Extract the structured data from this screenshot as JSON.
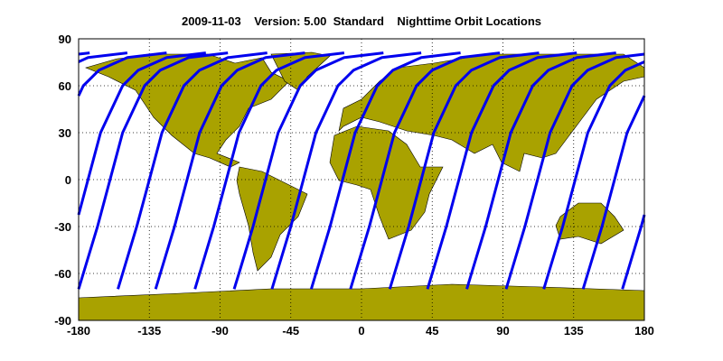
{
  "chart_data": {
    "type": "line",
    "title": "2009-11-03    Version: 5.00  Standard    Nighttime Orbit Locations",
    "xlim": [
      -180,
      180
    ],
    "ylim": [
      -90,
      90
    ],
    "xticks": [
      -180,
      -135,
      -90,
      -45,
      0,
      45,
      90,
      135,
      180
    ],
    "yticks": [
      -90,
      -60,
      -30,
      0,
      30,
      60,
      90
    ],
    "grid": true,
    "color": "#0000ee",
    "series": [
      {
        "x": [
          -180,
          -177,
          -168,
          -160,
          -152,
          -138,
          -128,
          -110,
          -85
        ],
        "y": [
          -70,
          -60,
          -30,
          0,
          30,
          60,
          70,
          78,
          81
        ]
      },
      {
        "x": [
          -155,
          -152,
          -143,
          -135,
          -127,
          -113,
          -103,
          -85,
          -60
        ],
        "y": [
          -70,
          -60,
          -30,
          0,
          30,
          60,
          70,
          78,
          81
        ]
      },
      {
        "x": [
          -131,
          -128,
          -119,
          -111,
          -103,
          -89,
          -79,
          -61,
          -36
        ],
        "y": [
          -70,
          -60,
          -30,
          0,
          30,
          60,
          70,
          78,
          81
        ]
      },
      {
        "x": [
          -106,
          -103,
          -94,
          -86,
          -78,
          -64,
          -54,
          -36,
          -11
        ],
        "y": [
          -70,
          -60,
          -30,
          0,
          30,
          60,
          70,
          78,
          81
        ]
      },
      {
        "x": [
          -81,
          -78,
          -69,
          -61,
          -53,
          -39,
          -29,
          -11,
          14
        ],
        "y": [
          -70,
          -60,
          -30,
          0,
          30,
          60,
          70,
          78,
          81
        ]
      },
      {
        "x": [
          -57,
          -54,
          -45,
          -37,
          -29,
          -15,
          -5,
          13,
          38
        ],
        "y": [
          -70,
          -60,
          -30,
          0,
          30,
          60,
          70,
          78,
          81
        ]
      },
      {
        "x": [
          -32,
          -29,
          -20,
          -12,
          -4,
          10,
          20,
          38,
          63
        ],
        "y": [
          -70,
          -60,
          -30,
          0,
          30,
          60,
          70,
          78,
          81
        ]
      },
      {
        "x": [
          -7,
          -4,
          5,
          13,
          21,
          35,
          45,
          63,
          88
        ],
        "y": [
          -70,
          -60,
          -30,
          0,
          30,
          60,
          70,
          78,
          81
        ]
      },
      {
        "x": [
          18,
          21,
          30,
          38,
          46,
          60,
          70,
          88,
          113
        ],
        "y": [
          -70,
          -60,
          -30,
          0,
          30,
          60,
          70,
          78,
          81
        ]
      },
      {
        "x": [
          42,
          45,
          54,
          62,
          70,
          84,
          94,
          112,
          137
        ],
        "y": [
          -70,
          -60,
          -30,
          0,
          30,
          60,
          70,
          78,
          81
        ]
      },
      {
        "x": [
          67,
          70,
          79,
          87,
          95,
          109,
          119,
          137,
          162
        ],
        "y": [
          -70,
          -60,
          -30,
          0,
          30,
          60,
          70,
          78,
          81
        ]
      },
      {
        "x": [
          92,
          95,
          104,
          112,
          120,
          134,
          144,
          162,
          180,
          null,
          -180,
          -173
        ],
        "y": [
          -70,
          -60,
          -30,
          0,
          30,
          60,
          70,
          78,
          80.2,
          null,
          80.2,
          81
        ]
      },
      {
        "x": [
          116,
          119,
          128,
          136,
          144,
          158,
          168,
          180,
          null,
          -180,
          -174,
          -149
        ],
        "y": [
          -70,
          -60,
          -30,
          0,
          30,
          60,
          70,
          75.3,
          null,
          75.3,
          78,
          81
        ]
      },
      {
        "x": [
          141,
          144,
          153,
          161,
          169,
          180,
          null,
          -180,
          -177,
          -167,
          -149,
          -124
        ],
        "y": [
          -70,
          -60,
          -30,
          0,
          30,
          53.6,
          null,
          53.6,
          60,
          70,
          78,
          81
        ]
      },
      {
        "x": [
          166,
          169,
          178,
          180,
          null,
          -180,
          -174,
          -166,
          -152,
          -142,
          -124,
          -99
        ],
        "y": [
          -70,
          -60,
          -30,
          -22.5,
          null,
          -22.5,
          0,
          30,
          60,
          70,
          78,
          81
        ]
      }
    ]
  }
}
